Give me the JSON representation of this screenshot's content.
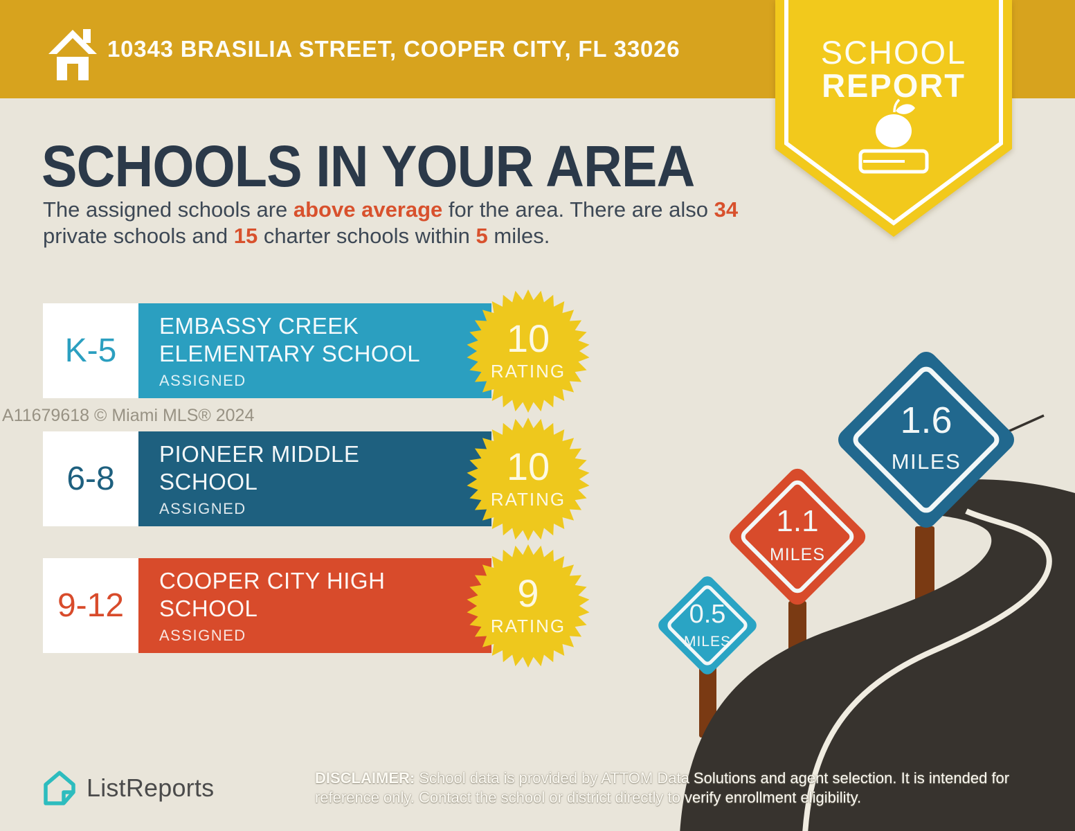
{
  "banner": {
    "address": "10343 BRASILIA STREET, COOPER CITY, FL 33026"
  },
  "ribbon": {
    "line1": "SCHOOL",
    "line2": "REPORT"
  },
  "page": {
    "heading": "SCHOOLS IN YOUR AREA"
  },
  "intro": {
    "seg1": "The assigned schools are ",
    "hl1": "above average",
    "seg2": " for the area. There are also ",
    "hl2": "34",
    "seg3": " private schools and ",
    "hl3": "15",
    "seg4": " charter schools within ",
    "hl4": "5",
    "seg5": " miles."
  },
  "schools": [
    {
      "grades": "K-5",
      "name_line1": "EMBASSY CREEK",
      "name_line2": "ELEMENTARY SCHOOL",
      "status": "ASSIGNED",
      "rating": "10",
      "rating_label": "RATING",
      "color": "#2b9fc0"
    },
    {
      "grades": "6-8",
      "name_line1": "PIONEER MIDDLE",
      "name_line2": "SCHOOL",
      "status": "ASSIGNED",
      "rating": "10",
      "rating_label": "RATING",
      "color": "#1e607f"
    },
    {
      "grades": "9-12",
      "name_line1": "COOPER CITY HIGH",
      "name_line2": "SCHOOL",
      "status": "ASSIGNED",
      "rating": "9",
      "rating_label": "RATING",
      "color": "#d84b2b"
    }
  ],
  "signs": [
    {
      "value": "0.5",
      "label": "MILES",
      "color": "#2aa4c4"
    },
    {
      "value": "1.1",
      "label": "MILES",
      "color": "#d84b2b"
    },
    {
      "value": "1.6",
      "label": "MILES",
      "color": "#21688e"
    }
  ],
  "watermark": "A11679618 © Miami MLS® 2024",
  "footer": {
    "brand": "ListReports",
    "disclaimer_label": "DISCLAIMER:",
    "disclaimer_text": " School data is provided by ATTOM Data Solutions and agent selection. It is intended for reference only. Contact the school or district directly to verify enrollment eligibility."
  },
  "colors": {
    "banner_gold": "#d7a31e",
    "ribbon_yellow": "#f2c91c",
    "background": "#e9e5da",
    "heading": "#2b3949",
    "accent_red": "#d8512d",
    "starburst": "#eec81d",
    "road": "#37332e",
    "road_line": "#f0ece1",
    "post": "#7a3a13",
    "white": "#ffffff",
    "logo_teal": "#2dbcbe"
  }
}
